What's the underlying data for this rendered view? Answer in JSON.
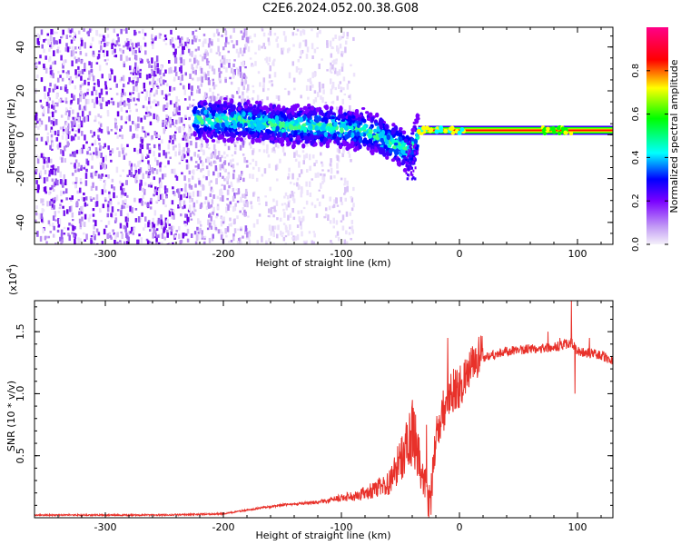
{
  "title": "C2E6.2024.052.00.38.G08",
  "chart_data": [
    {
      "type": "heatmap",
      "xlabel": "Height of straight line (km)",
      "ylabel": "Frequency (Hz)",
      "xlim": [
        -360,
        130
      ],
      "ylim": [
        -50,
        49
      ],
      "xticks": [
        -300,
        -200,
        -100,
        0,
        100
      ],
      "yticks": [
        -40,
        -20,
        0,
        20,
        40
      ],
      "colorbar": {
        "label": "Normalized spectral amplitude",
        "range": [
          0.0,
          1.0
        ],
        "ticks": [
          "0.0",
          "0.2",
          "0.4",
          "0.6",
          "0.8"
        ],
        "colors": [
          "#f4f0fa",
          "#7a00ff",
          "#0000ff",
          "#00ffff",
          "#00ff00",
          "#ffff00",
          "#ff0000",
          "#ff00ff"
        ]
      },
      "features": {
        "noise_region_x": [
          -360,
          -180
        ],
        "trace": [
          [
            -220,
            7
          ],
          [
            -180,
            6
          ],
          [
            -150,
            4
          ],
          [
            -120,
            4
          ],
          [
            -100,
            3
          ],
          [
            -80,
            2
          ],
          [
            -60,
            -3
          ],
          [
            -42,
            -8
          ],
          [
            -35,
            0
          ],
          [
            0,
            2
          ],
          [
            50,
            2
          ],
          [
            80,
            3
          ],
          [
            100,
            2
          ],
          [
            130,
            2
          ]
        ],
        "stable_band": {
          "x": [
            -35,
            130
          ],
          "freq": 2,
          "amplitude": 1.0
        }
      }
    },
    {
      "type": "line",
      "xlabel": "Height of straight line (km)",
      "ylabel": "SNR (10 * v/v)",
      "yscale_label": "(x10",
      "yscale_exp": "4",
      "xlim": [
        -360,
        130
      ],
      "ylim": [
        0,
        1.75
      ],
      "xticks": [
        -300,
        -200,
        -100,
        0,
        100
      ],
      "yticks": [
        "0.5",
        "1.0",
        "1.5"
      ],
      "series": [
        {
          "color": "#e8312a",
          "envelope": [
            [
              -360,
              0.02
            ],
            [
              -250,
              0.02
            ],
            [
              -200,
              0.03
            ],
            [
              -180,
              0.06
            ],
            [
              -150,
              0.1
            ],
            [
              -120,
              0.12
            ],
            [
              -100,
              0.15
            ],
            [
              -80,
              0.18
            ],
            [
              -60,
              0.25
            ],
            [
              -45,
              0.5
            ],
            [
              -40,
              0.6
            ],
            [
              -35,
              0.45
            ],
            [
              -25,
              0.02
            ],
            [
              -20,
              0.6
            ],
            [
              -15,
              0.75
            ],
            [
              -10,
              0.95
            ],
            [
              0,
              1.0
            ],
            [
              10,
              1.15
            ],
            [
              20,
              1.28
            ],
            [
              40,
              1.33
            ],
            [
              60,
              1.35
            ],
            [
              80,
              1.36
            ],
            [
              95,
              1.4
            ],
            [
              100,
              1.33
            ],
            [
              120,
              1.3
            ],
            [
              130,
              1.25
            ]
          ],
          "spikes": [
            [
              -40,
              0.95
            ],
            [
              -28,
              0.75
            ],
            [
              -10,
              1.45
            ],
            [
              -5,
              1.2
            ],
            [
              75,
              1.5
            ],
            [
              85,
              1.45
            ],
            [
              95,
              1.75
            ],
            [
              98,
              1.0
            ],
            [
              110,
              1.45
            ]
          ]
        }
      ]
    }
  ]
}
